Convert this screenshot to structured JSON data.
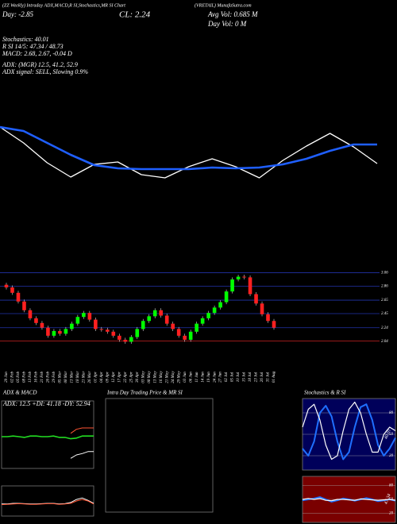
{
  "header": {
    "title": "(ZZ Weekly) Intraday ADX,MACD,R SI,Stochastics,MR SI Chart",
    "symbol": "(VRETAIL) MunafaSutra.com",
    "day": "Day: -2.85",
    "close": "CL: 2.24",
    "avg_vol": "Avg Vol: 0.685 M",
    "day_vol": "Day Vol: 0 M",
    "lines": [
      "Stochastics: 40.01",
      "R SI 14/5: 47.34 / 48.73",
      "MACD: 2.68, 2.67, -0.04 D",
      "ADX: (MGR) 12.5, 41.2, 52.9",
      "ADX signal: SELL, Slowing 0.9%"
    ]
  },
  "chart_data": [
    {
      "type": "line",
      "ylim": [
        0,
        100
      ],
      "series": [
        {
          "color": "#ffffff",
          "values": [
            80,
            60,
            35,
            17,
            33,
            36,
            20,
            16,
            30,
            40,
            30,
            16,
            38,
            56,
            72,
            55,
            34
          ]
        },
        {
          "color": "#1f5fff",
          "values": [
            80,
            75,
            60,
            45,
            32,
            28,
            27,
            27,
            27,
            29,
            28,
            29,
            33,
            40,
            50,
            58,
            58
          ]
        }
      ]
    },
    {
      "type": "candlestick",
      "up_color": "#00ff00",
      "down_color": "#ff2020",
      "ylim": [
        2.0,
        3.16
      ],
      "yticks": [
        2.04,
        2.24,
        2.45,
        2.65,
        2.86,
        3.06
      ],
      "categories": [
        "29 Jan",
        "02 Feb",
        "05 Feb",
        "08 Feb",
        "13 Feb",
        "16 Feb",
        "21 Feb",
        "26 Feb",
        "29 Feb",
        "05 Mar",
        "08 Mar",
        "13 Mar",
        "18 Mar",
        "21 Mar",
        "26 Mar",
        "01 Apr",
        "04 Apr",
        "09 Apr",
        "12 Apr",
        "17 Apr",
        "22 Apr",
        "25 Apr",
        "30 Apr",
        "03 May",
        "08 May",
        "13 May",
        "16 May",
        "21 May",
        "24 May",
        "29 May",
        "03 Jun",
        "06 Jun",
        "11 Jun",
        "14 Jun",
        "19 Jun",
        "24 Jun",
        "27 Jun",
        "02 Jul",
        "05 Jul",
        "10 Jul",
        "15 Jul",
        "18 Jul",
        "23 Jul",
        "26 Jul",
        "31 Jul",
        "01 Aug"
      ],
      "open": [
        2.88,
        2.84,
        2.76,
        2.63,
        2.5,
        2.38,
        2.31,
        2.24,
        2.12,
        2.19,
        2.15,
        2.22,
        2.3,
        2.4,
        2.46,
        2.36,
        2.22,
        2.21,
        2.18,
        2.12,
        2.06,
        2.03,
        2.1,
        2.22,
        2.34,
        2.41,
        2.5,
        2.42,
        2.3,
        2.22,
        2.12,
        2.06,
        2.18,
        2.3,
        2.38,
        2.46,
        2.54,
        2.62,
        2.78,
        2.96,
        3.0,
        2.99,
        2.74,
        2.6,
        2.44,
        2.34
      ],
      "high": [
        2.91,
        2.87,
        2.79,
        2.66,
        2.53,
        2.41,
        2.34,
        2.27,
        2.22,
        2.22,
        2.25,
        2.33,
        2.43,
        2.49,
        2.49,
        2.39,
        2.25,
        2.24,
        2.21,
        2.15,
        2.09,
        2.13,
        2.25,
        2.37,
        2.44,
        2.53,
        2.53,
        2.45,
        2.33,
        2.25,
        2.15,
        2.21,
        2.33,
        2.41,
        2.49,
        2.57,
        2.65,
        2.81,
        2.99,
        3.03,
        3.03,
        3.02,
        2.77,
        2.63,
        2.47,
        2.37
      ],
      "low": [
        2.81,
        2.73,
        2.6,
        2.47,
        2.35,
        2.28,
        2.21,
        2.09,
        2.09,
        2.12,
        2.12,
        2.19,
        2.27,
        2.37,
        2.33,
        2.19,
        2.18,
        2.15,
        2.09,
        2.03,
        2.0,
        2.0,
        2.07,
        2.19,
        2.31,
        2.38,
        2.39,
        2.27,
        2.19,
        2.09,
        2.03,
        2.03,
        2.15,
        2.27,
        2.35,
        2.43,
        2.51,
        2.59,
        2.75,
        2.93,
        2.96,
        2.71,
        2.57,
        2.41,
        2.31,
        2.21
      ],
      "close": [
        2.84,
        2.76,
        2.63,
        2.5,
        2.38,
        2.31,
        2.24,
        2.12,
        2.19,
        2.15,
        2.22,
        2.3,
        2.4,
        2.46,
        2.36,
        2.22,
        2.21,
        2.18,
        2.12,
        2.06,
        2.03,
        2.1,
        2.22,
        2.34,
        2.41,
        2.5,
        2.42,
        2.3,
        2.22,
        2.12,
        2.06,
        2.18,
        2.3,
        2.38,
        2.46,
        2.54,
        2.62,
        2.78,
        2.96,
        3.0,
        2.99,
        2.74,
        2.6,
        2.44,
        2.34,
        2.24
      ]
    },
    {
      "type": "line",
      "title": "ADX & MACD",
      "subtitle": "ADX: 12.5  +DI: 41.18  -DY: 52.94",
      "ylim": [
        0,
        100
      ],
      "series": [
        {
          "color": "#22dd22",
          "values": [
            47,
            47,
            48,
            47,
            46,
            48,
            48,
            47,
            47,
            48,
            46,
            46,
            44,
            45,
            48,
            48,
            48
          ]
        },
        {
          "color": "#ff5533",
          "values": [
            null,
            null,
            null,
            null,
            null,
            null,
            null,
            null,
            null,
            null,
            null,
            null,
            52,
            58,
            60,
            60,
            60
          ]
        },
        {
          "color": "#ffffff",
          "values": [
            null,
            null,
            null,
            null,
            null,
            null,
            null,
            null,
            null,
            null,
            null,
            null,
            15,
            20,
            22,
            25,
            25
          ]
        }
      ]
    },
    {
      "type": "line",
      "ylim": [
        0,
        100
      ],
      "series": [
        {
          "color": "#ffffff",
          "values": [
            40,
            40,
            42,
            42,
            41,
            40,
            40,
            41,
            42,
            42,
            40,
            41,
            45,
            55,
            60,
            52,
            42
          ]
        },
        {
          "color": "#ff5533",
          "values": [
            38,
            39,
            40,
            41,
            40,
            39,
            39,
            40,
            41,
            41,
            39,
            40,
            42,
            50,
            55,
            50,
            40
          ]
        }
      ]
    },
    {
      "type": "line",
      "title": "Intra Day Trading Price & MR SI",
      "ylim": [
        0,
        100
      ],
      "series": []
    },
    {
      "type": "line",
      "title": "Stochastics & R SI",
      "annotation": "40.01",
      "ylim": [
        0,
        100
      ],
      "yticks": [
        20,
        50,
        80
      ],
      "series": [
        {
          "color": "#1f6fff",
          "values": [
            30,
            20,
            40,
            80,
            90,
            75,
            40,
            15,
            25,
            60,
            88,
            92,
            70,
            35,
            20,
            30,
            45
          ]
        },
        {
          "color": "#ffffff",
          "values": [
            60,
            85,
            92,
            70,
            35,
            15,
            20,
            55,
            85,
            95,
            80,
            50,
            25,
            25,
            50,
            60,
            55
          ]
        }
      ]
    },
    {
      "type": "line",
      "annotation": "47.34",
      "ylim": [
        0,
        100
      ],
      "yticks": [
        20,
        50,
        80
      ],
      "series": [
        {
          "color": "#1f6fff",
          "values": [
            48,
            50,
            52,
            55,
            50,
            45,
            48,
            52,
            50,
            47,
            50,
            53,
            50,
            46,
            48,
            50,
            47
          ]
        },
        {
          "color": "#ffffff",
          "values": [
            50,
            52,
            50,
            52,
            48,
            47,
            50,
            50,
            49,
            48,
            51,
            50,
            49,
            48,
            49,
            50,
            48
          ]
        }
      ]
    }
  ]
}
